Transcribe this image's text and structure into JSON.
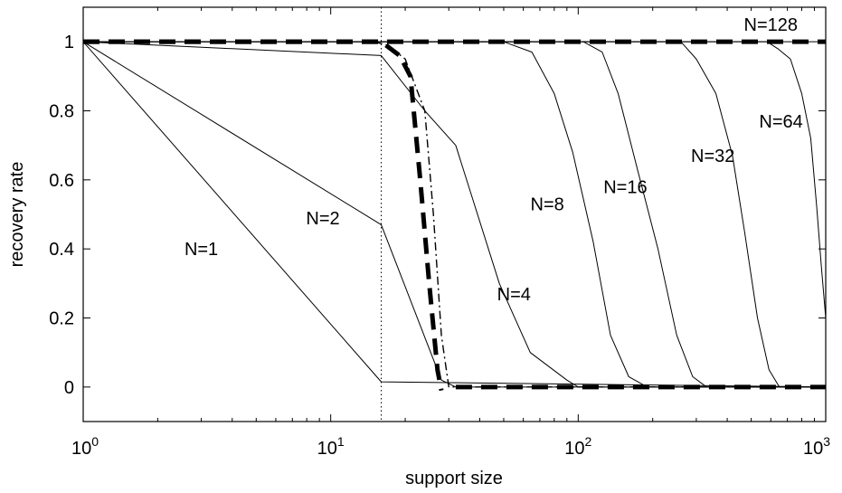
{
  "chart_data": {
    "type": "line",
    "xscale": "log",
    "xlim": [
      1,
      1000
    ],
    "ylim": [
      -0.1,
      1.1
    ],
    "xlabel": "support size",
    "ylabel": "recovery rate",
    "xticks": [
      {
        "value": 1,
        "base": "10",
        "exp": "0"
      },
      {
        "value": 10,
        "base": "10",
        "exp": "1"
      },
      {
        "value": 100,
        "base": "10",
        "exp": "2"
      },
      {
        "value": 1000,
        "base": "10",
        "exp": "3"
      }
    ],
    "yticks": [
      {
        "value": 0,
        "label": "0"
      },
      {
        "value": 0.2,
        "label": "0.2"
      },
      {
        "value": 0.4,
        "label": "0.4"
      },
      {
        "value": 0.6,
        "label": "0.6"
      },
      {
        "value": 0.8,
        "label": "0.8"
      },
      {
        "value": 1,
        "label": "1"
      }
    ],
    "reference_line_x": 16,
    "series": [
      {
        "name": "N=1",
        "style": "solid",
        "points": [
          [
            1,
            1
          ],
          [
            16,
            0.015
          ],
          [
            1000,
            0
          ]
        ]
      },
      {
        "name": "N=2",
        "style": "solid",
        "points": [
          [
            1,
            1
          ],
          [
            16,
            0.47
          ],
          [
            28,
            0.02
          ],
          [
            32,
            0
          ],
          [
            1000,
            0
          ]
        ]
      },
      {
        "name": "N=4",
        "style": "solid",
        "points": [
          [
            1,
            1
          ],
          [
            16,
            0.96
          ],
          [
            24,
            0.8
          ],
          [
            32,
            0.7
          ],
          [
            48,
            0.3
          ],
          [
            64,
            0.1
          ],
          [
            90,
            0.02
          ],
          [
            100,
            0
          ],
          [
            1000,
            0
          ]
        ]
      },
      {
        "name": "N=8",
        "style": "solid",
        "points": [
          [
            1,
            1
          ],
          [
            50,
            1
          ],
          [
            65,
            0.97
          ],
          [
            80,
            0.85
          ],
          [
            95,
            0.68
          ],
          [
            115,
            0.42
          ],
          [
            135,
            0.15
          ],
          [
            160,
            0.03
          ],
          [
            190,
            0
          ],
          [
            1000,
            0
          ]
        ]
      },
      {
        "name": "N=16",
        "style": "solid",
        "points": [
          [
            1,
            1
          ],
          [
            105,
            1
          ],
          [
            125,
            0.97
          ],
          [
            145,
            0.85
          ],
          [
            175,
            0.62
          ],
          [
            210,
            0.4
          ],
          [
            250,
            0.15
          ],
          [
            290,
            0.03
          ],
          [
            330,
            0
          ],
          [
            1000,
            0
          ]
        ]
      },
      {
        "name": "N=32",
        "style": "solid",
        "points": [
          [
            1,
            1
          ],
          [
            260,
            1
          ],
          [
            300,
            0.95
          ],
          [
            360,
            0.85
          ],
          [
            420,
            0.67
          ],
          [
            470,
            0.45
          ],
          [
            530,
            0.2
          ],
          [
            590,
            0.05
          ],
          [
            650,
            0
          ],
          [
            1000,
            0
          ]
        ]
      },
      {
        "name": "N=64",
        "style": "solid",
        "points": [
          [
            1,
            1
          ],
          [
            580,
            1
          ],
          [
            640,
            0.98
          ],
          [
            720,
            0.95
          ],
          [
            800,
            0.85
          ],
          [
            870,
            0.72
          ],
          [
            920,
            0.52
          ],
          [
            960,
            0.35
          ],
          [
            1000,
            0.2
          ]
        ]
      },
      {
        "name": "N=128",
        "style": "solid",
        "points": [
          [
            1,
            1
          ],
          [
            1000,
            1
          ]
        ]
      },
      {
        "name": "",
        "style": "dashdot",
        "points": [
          [
            15,
            1
          ],
          [
            17,
            0.99
          ],
          [
            20,
            0.95
          ],
          [
            24,
            0.8
          ],
          [
            26,
            0.5
          ],
          [
            28,
            0.15
          ],
          [
            30,
            0
          ],
          [
            1000,
            0
          ]
        ]
      },
      {
        "name": "",
        "style": "thickdash",
        "points": [
          [
            1,
            1
          ],
          [
            16,
            1
          ],
          [
            19,
            0.96
          ],
          [
            21,
            0.9
          ],
          [
            23,
            0.6
          ],
          [
            25,
            0.3
          ],
          [
            27,
            0.05
          ],
          [
            28,
            -0.01
          ]
        ]
      },
      {
        "name": "",
        "style": "thickdash",
        "points": [
          [
            32,
            0
          ],
          [
            1000,
            0
          ]
        ]
      },
      {
        "name": "",
        "style": "thickdash",
        "points": [
          [
            1,
            1
          ],
          [
            1000,
            1
          ]
        ]
      }
    ],
    "labels": [
      {
        "text": "N=1",
        "at": [
          3.0,
          0.4
        ]
      },
      {
        "text": "N=2",
        "at": [
          9.3,
          0.49
        ]
      },
      {
        "text": "N=4",
        "at": [
          55,
          0.27
        ]
      },
      {
        "text": "N=8",
        "at": [
          75,
          0.53
        ]
      },
      {
        "text": "N=16",
        "at": [
          155,
          0.58
        ]
      },
      {
        "text": "N=32",
        "at": [
          350,
          0.67
        ]
      },
      {
        "text": "N=64",
        "at": [
          660,
          0.77
        ]
      },
      {
        "text": "N=128",
        "at": [
          600,
          1.05
        ]
      }
    ],
    "legend": "none",
    "grid": false
  }
}
